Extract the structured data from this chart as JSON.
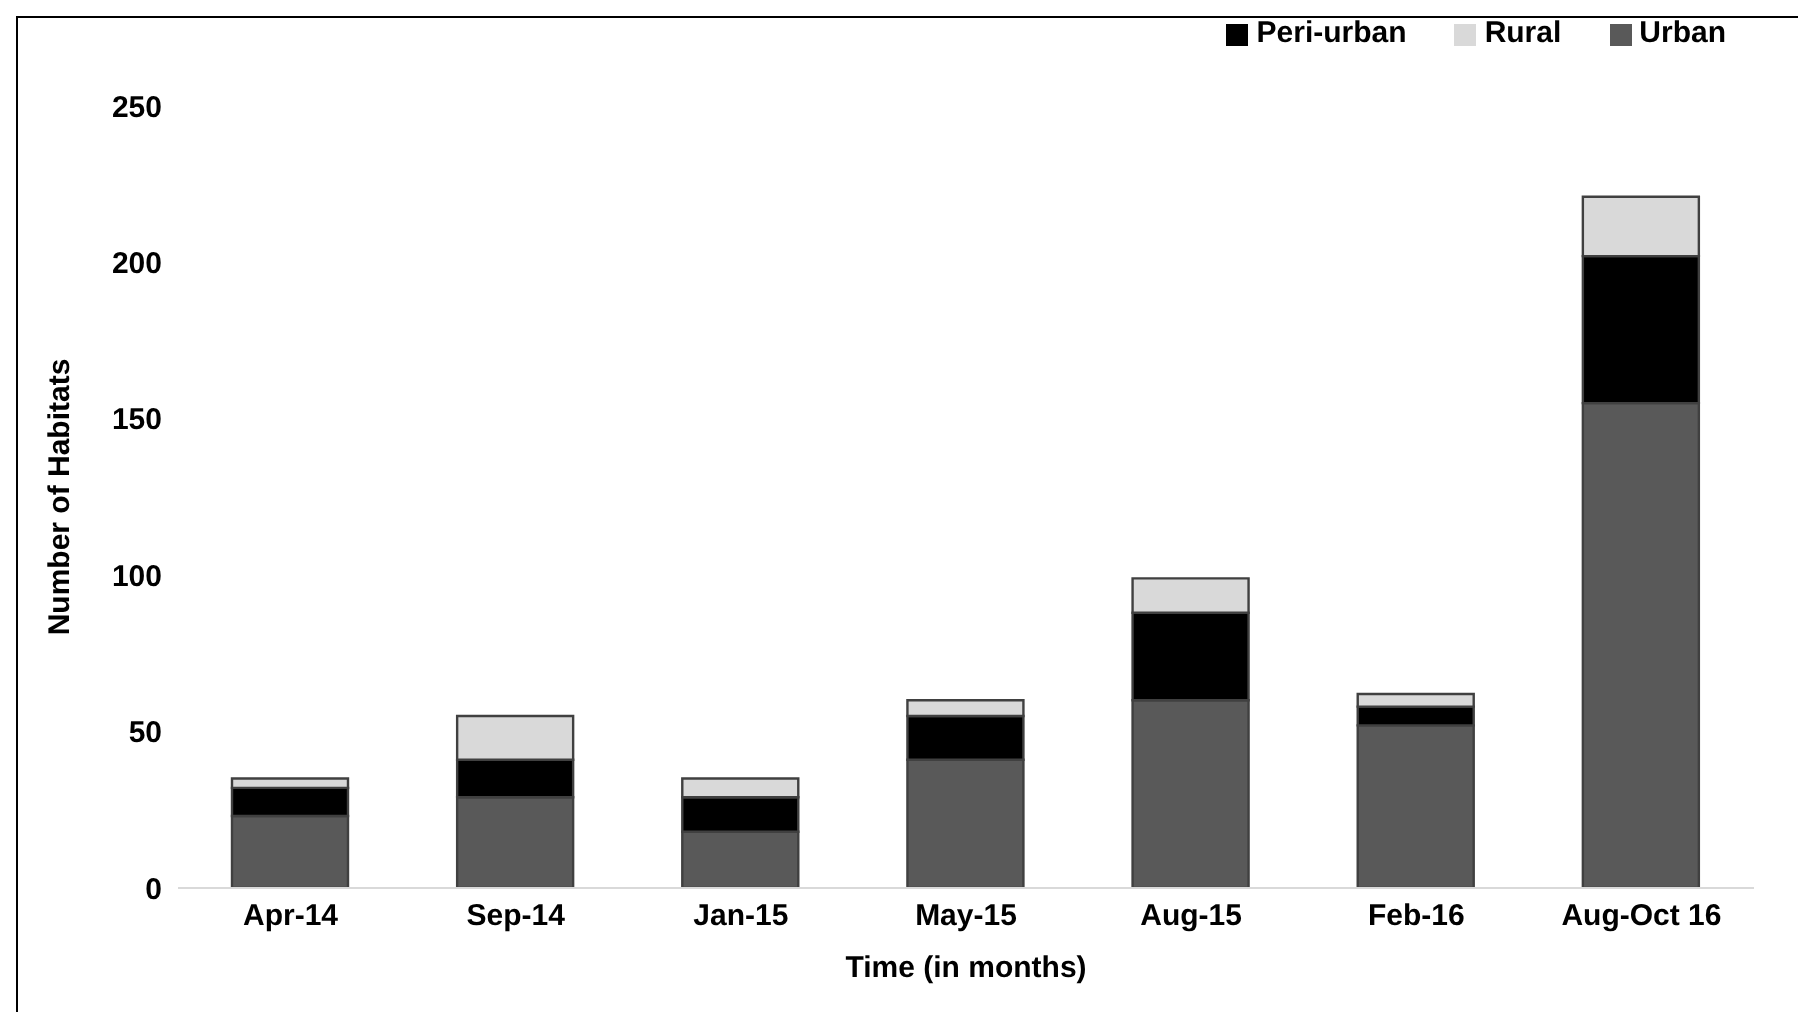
{
  "chart_data": {
    "type": "bar",
    "stacked": true,
    "xlabel": "Time (in months)",
    "ylabel": "Number of Habitats",
    "categories": [
      "Apr-14",
      "Sep-14",
      "Jan-15",
      "May-15",
      "Aug-15",
      "Feb-16",
      "Aug-Oct 16"
    ],
    "series": [
      {
        "name": "Urban",
        "color": "#595959",
        "values": [
          23,
          29,
          18,
          41,
          60,
          52,
          155
        ]
      },
      {
        "name": "Peri-urban",
        "color": "#000000",
        "values": [
          9,
          12,
          11,
          14,
          28,
          6,
          47
        ]
      },
      {
        "name": "Rural",
        "color": "#d9d9d9",
        "values": [
          3,
          14,
          6,
          5,
          11,
          4,
          19
        ]
      }
    ],
    "ylim": [
      0,
      250
    ],
    "yticks": [
      0,
      50,
      100,
      150,
      200,
      250
    ],
    "grid": false,
    "legend": "top right"
  }
}
